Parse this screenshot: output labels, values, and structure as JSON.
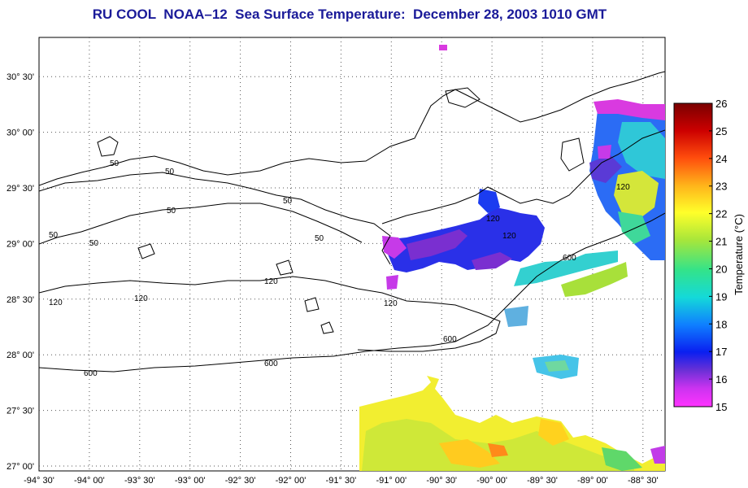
{
  "title": "RU COOL  NOAA–12  Sea Surface Temperature:  December 28, 2003 1010 GMT",
  "lat_ticks": [
    "27° 00'",
    "27° 30'",
    "28° 00'",
    "28° 30'",
    "29° 00'",
    "29° 30'",
    "30° 00'",
    "30° 30'"
  ],
  "lon_ticks": [
    "-94° 30'",
    "-94° 00'",
    "-93° 30'",
    "-93° 00'",
    "-92° 30'",
    "-92° 00'",
    "-91° 30'",
    "-91° 00'",
    "-90° 30'",
    "-90° 00'",
    "-89° 30'",
    "-89° 00'",
    "-88° 30'"
  ],
  "colorbar": {
    "title": "Temperature (°C)",
    "ticks": [
      "26",
      "25",
      "24",
      "23",
      "22",
      "21",
      "20",
      "19",
      "18",
      "17",
      "16",
      "15"
    ],
    "min": 15,
    "max": 26
  },
  "contour_labels": [
    "50",
    "50",
    "50",
    "50",
    "50",
    "50",
    "50",
    "120",
    "120",
    "120",
    "120",
    "120",
    "120",
    "120",
    "600",
    "600",
    "600",
    "600"
  ],
  "colors": {
    "title": "#1a1a99",
    "gradient": [
      "#ff33ff",
      "#7a2fd0",
      "#0a1ff0",
      "#0f7fff",
      "#14d9d9",
      "#33e38a",
      "#a8e63a",
      "#ffff2a",
      "#ffb31a",
      "#ff4d0d",
      "#cc0000",
      "#7a0000"
    ]
  }
}
